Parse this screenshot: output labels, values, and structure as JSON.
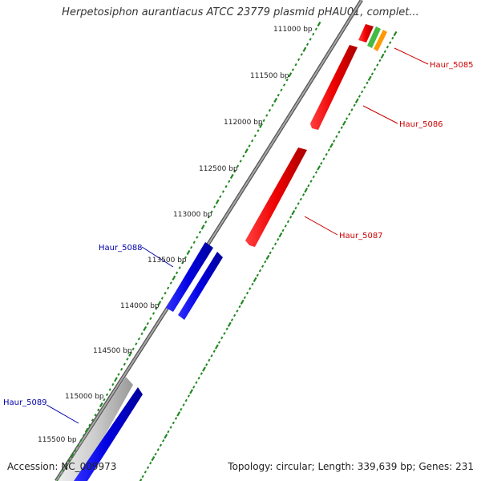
{
  "title": "Herpetosiphon aurantiacus ATCC 23779 plasmid pHAU01, complet...",
  "accession": "Accession: NC_009973",
  "summary": "Topology: circular; Length: 339,639 bp; Genes: 231",
  "tick_labels": [
    "111000 bp",
    "111500 bp",
    "112000 bp",
    "112500 bp",
    "113000 bp",
    "113500 bp",
    "114000 bp",
    "114500 bp",
    "115000 bp",
    "115500 bp"
  ],
  "gene_labels": [
    {
      "text": "Haur_5085",
      "strand": "reverse"
    },
    {
      "text": "Haur_5086",
      "strand": "reverse"
    },
    {
      "text": "Haur_5087",
      "strand": "reverse"
    },
    {
      "text": "Haur_5088",
      "strand": "forward"
    },
    {
      "text": "Haur_5089",
      "strand": "forward"
    }
  ],
  "colors": {
    "reverse_gene": "#ff0000",
    "forward_gene": "#0000ee",
    "pseudo_gene": "#c8c8c8",
    "green_feature": "#44bb44",
    "orange_feature": "#ff9900",
    "backbone": "#777777",
    "tick": "#228822",
    "reverse_label": "#cc0000",
    "forward_label": "#0000aa"
  }
}
